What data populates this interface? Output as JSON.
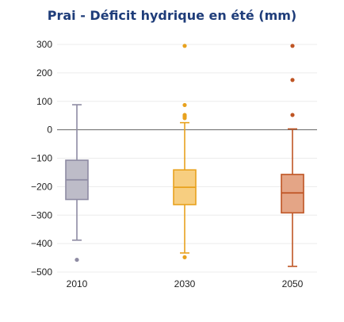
{
  "chart_data": {
    "type": "boxplot",
    "title": "Prai - Déficit hydrique en été (mm)",
    "xlabel": "",
    "ylabel": "",
    "categories": [
      "2010",
      "2030",
      "2050"
    ],
    "ylim": [
      -500,
      300
    ],
    "yticks": [
      300,
      200,
      100,
      0,
      -100,
      -200,
      -300,
      -400,
      -500
    ],
    "ytick_labels": [
      "300",
      "200",
      "100",
      "0",
      "−100",
      "−200",
      "−300",
      "−400",
      "−500"
    ],
    "grid": true,
    "zero_line": true,
    "boxes": [
      {
        "category": "2010",
        "whisker_low": -388,
        "q1": -245,
        "median": -176,
        "q3": -107,
        "whisker_high": 88,
        "outliers": [
          -457
        ],
        "fill": "#bdbcc8",
        "stroke": "#8e8ba3"
      },
      {
        "category": "2030",
        "whisker_low": -433,
        "q1": -263,
        "median": -202,
        "q3": -141,
        "whisker_high": 25,
        "outliers": [
          -448,
          41,
          47,
          52,
          87,
          295
        ],
        "fill": "#f7ce80",
        "stroke": "#e8a21e"
      },
      {
        "category": "2050",
        "whisker_low": -480,
        "q1": -292,
        "median": -222,
        "q3": -157,
        "whisker_high": 3,
        "outliers": [
          52,
          175,
          295
        ],
        "fill": "#e4a586",
        "stroke": "#bf5524"
      }
    ]
  }
}
